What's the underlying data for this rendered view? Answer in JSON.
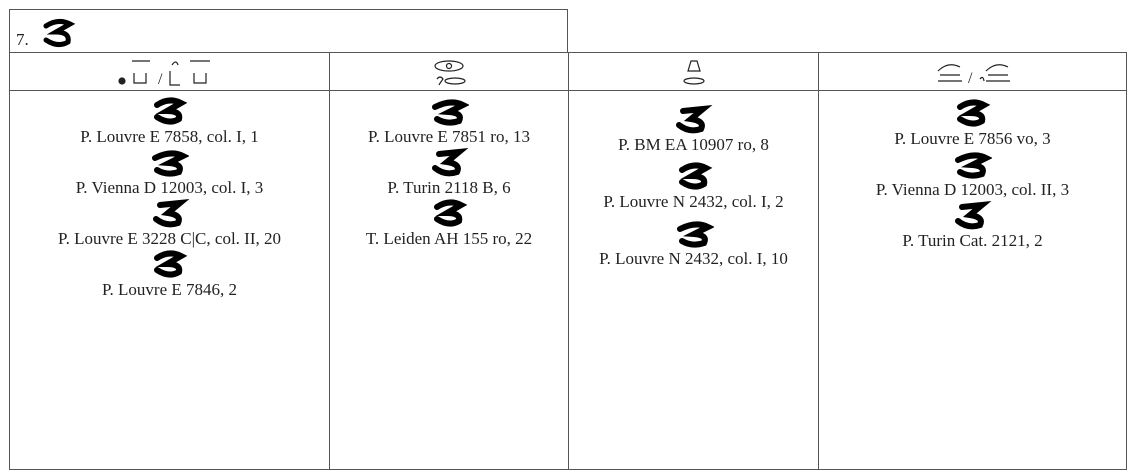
{
  "section": {
    "number": "7."
  },
  "columns": [
    {
      "entries": [
        "P. Louvre E 7858, col. I, 1",
        "P. Vienna D 12003, col. I, 3",
        "P. Louvre E 3228 C|C, col. II, 20",
        "P. Louvre E 7846, 2"
      ]
    },
    {
      "entries": [
        "P. Louvre E 7851 ro, 13",
        "P. Turin 2118 B, 6",
        "T. Leiden AH 155 ro, 22"
      ]
    },
    {
      "entries": [
        "P. BM EA 10907 ro, 8",
        "P. Louvre N 2432, col. I, 2",
        "P. Louvre N 2432, col. I, 10"
      ]
    },
    {
      "entries": [
        "P. Louvre E 7856 vo, 3",
        "P. Vienna D 12003, col. II, 3",
        "P. Turin Cat. 2121, 2"
      ]
    }
  ]
}
